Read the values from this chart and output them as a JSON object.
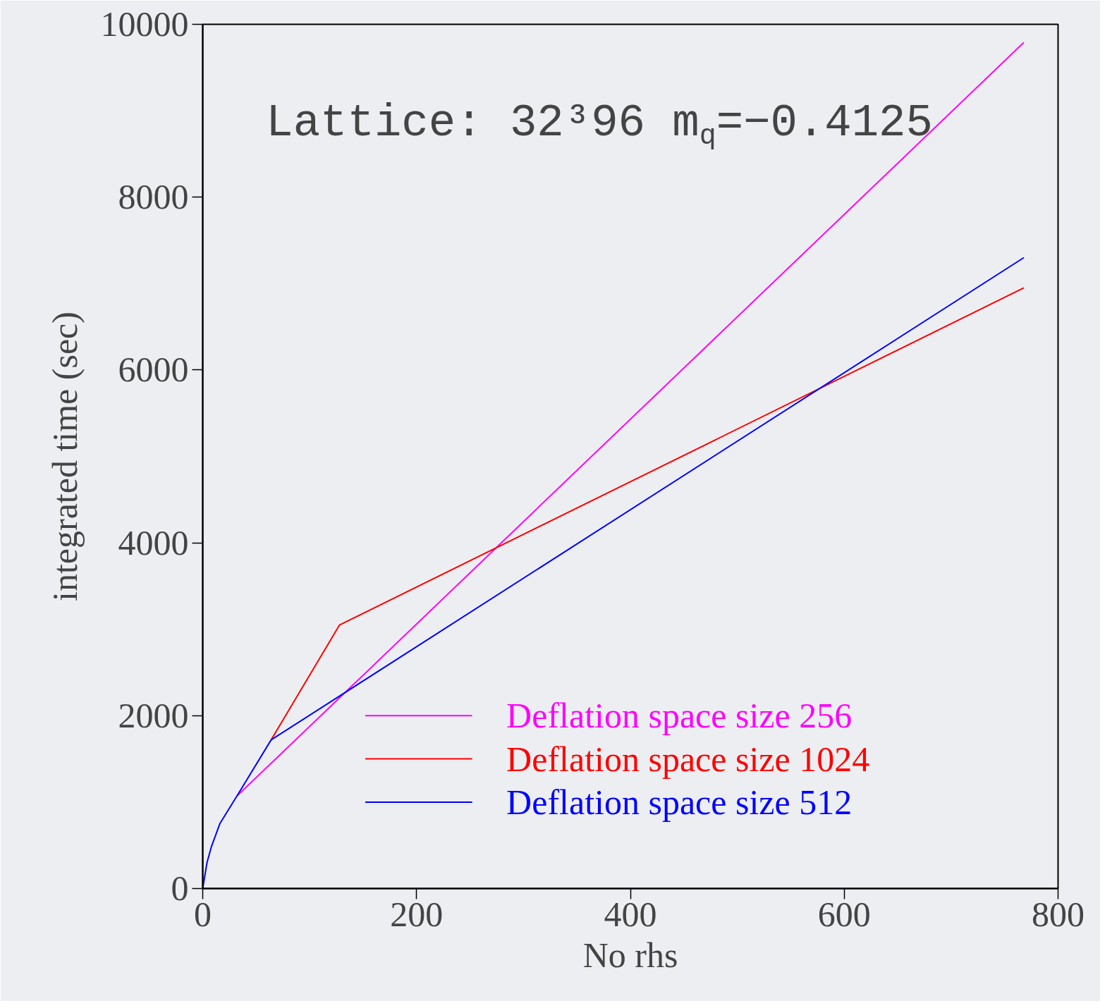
{
  "chart_data": {
    "type": "line",
    "title": "Lattice: 32³96 m$_{q}$=−0.4125",
    "xlabel": "No rhs",
    "ylabel": "integrated time (sec)",
    "xlim": [
      0,
      800
    ],
    "ylim": [
      0,
      10000
    ],
    "xticks": [
      0,
      200,
      400,
      600,
      800
    ],
    "yticks": [
      0,
      2000,
      4000,
      6000,
      8000,
      10000
    ],
    "grid": false,
    "legend": "bottom right",
    "marker": "none",
    "line_style": "solid",
    "series": [
      {
        "name": "Deflation space size 256",
        "color": "#ff00ff",
        "x": [
          32,
          768
        ],
        "values": [
          1070,
          9790
        ]
      },
      {
        "name": "Deflation space size 1024",
        "color": "#ff0000",
        "x": [
          64,
          128,
          768
        ],
        "values": [
          1720,
          3050,
          6950
        ]
      },
      {
        "name": "Deflation space size 512",
        "color": "#0000ff",
        "x": [
          0,
          4,
          8,
          16,
          32,
          64,
          768
        ],
        "values": [
          0,
          300,
          480,
          750,
          1070,
          1720,
          7300
        ]
      }
    ]
  }
}
